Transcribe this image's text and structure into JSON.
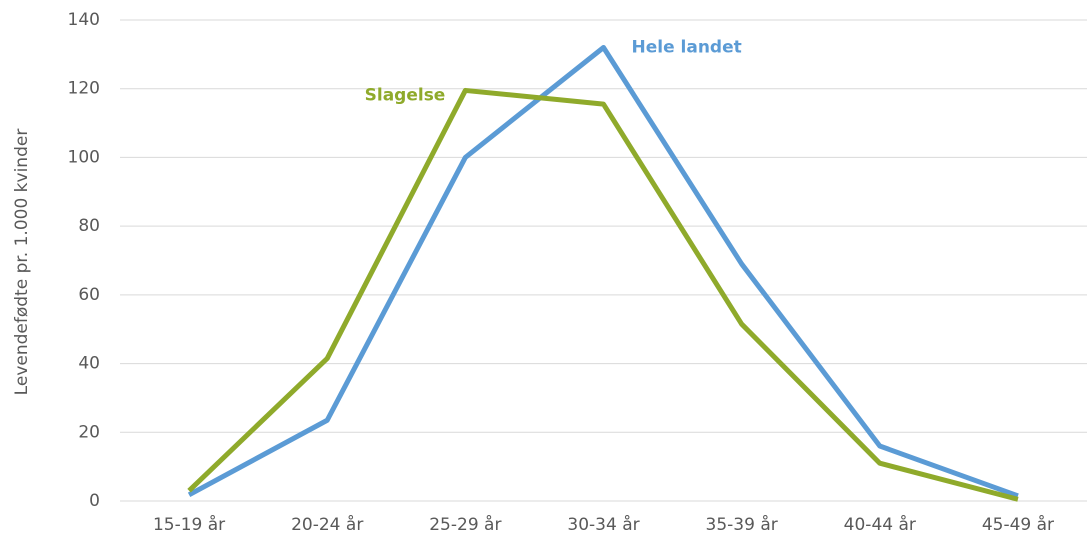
{
  "chart_data": {
    "type": "line",
    "y_label": "Levendefødte pr. 1.000 kvinder",
    "categories": [
      "15-19 år",
      "20-24 år",
      "25-29 år",
      "30-34 år",
      "35-39 år",
      "40-44 år",
      "45-49 år"
    ],
    "series": [
      {
        "name": "Hele landet",
        "color": "#5b9bd5",
        "values": [
          1.8,
          23.5,
          100,
          132,
          69,
          16,
          1.5
        ]
      },
      {
        "name": "Slagelse",
        "color": "#8faa2b",
        "values": [
          3,
          41.5,
          119.5,
          115.5,
          51.5,
          11,
          0.5
        ]
      }
    ],
    "ylim": [
      0,
      140
    ],
    "yticks": [
      0,
      20,
      40,
      60,
      80,
      100,
      120,
      140
    ],
    "grid": true
  }
}
